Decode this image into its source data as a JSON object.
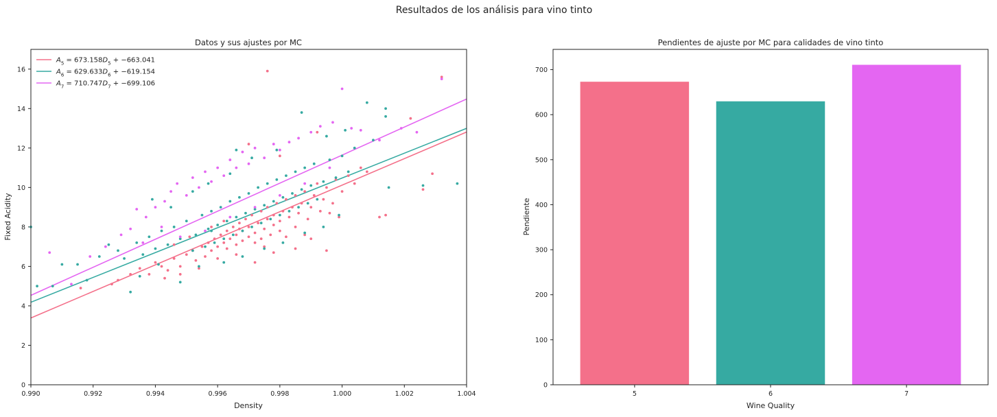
{
  "suptitle": "Resultados de los análisis para vino tinto",
  "chart_data": [
    {
      "type": "scatter",
      "title": "Datos y sus ajustes por MC",
      "xlabel": "Density",
      "ylabel": "Fixed Acidity",
      "xlim": [
        0.99,
        1.004
      ],
      "ylim": [
        0,
        17
      ],
      "xticks": [
        "0.990",
        "0.992",
        "0.994",
        "0.996",
        "0.998",
        "1.000",
        "1.002",
        "1.004"
      ],
      "yticks": [
        "0",
        "2",
        "4",
        "6",
        "8",
        "10",
        "12",
        "14",
        "16"
      ],
      "grid": false,
      "legend_position": "top-left",
      "series": [
        {
          "name": "A_5 = 673.158D_5 + -663.041",
          "legend_parts": {
            "sym": "A",
            "sub": "5",
            "eq": "673.158",
            "sym2": "D",
            "sub2": "5",
            "rest": "+ −663.041"
          },
          "color": "#f4708a",
          "slope": 673.158,
          "intercept": -663.041,
          "points": [
            [
              0.9916,
              4.9
            ],
            [
              0.9926,
              5.1
            ],
            [
              0.9928,
              5.3
            ],
            [
              0.9932,
              5.6
            ],
            [
              0.9935,
              5.9
            ],
            [
              0.9938,
              5.6
            ],
            [
              0.994,
              6.2
            ],
            [
              0.9942,
              6.0
            ],
            [
              0.9944,
              5.8
            ],
            [
              0.9946,
              6.4
            ],
            [
              0.9948,
              6.0
            ],
            [
              0.995,
              6.6
            ],
            [
              0.9952,
              6.8
            ],
            [
              0.9953,
              6.3
            ],
            [
              0.9955,
              7.0
            ],
            [
              0.9956,
              6.5
            ],
            [
              0.9957,
              7.2
            ],
            [
              0.9958,
              6.8
            ],
            [
              0.9959,
              7.4
            ],
            [
              0.996,
              7.0
            ],
            [
              0.9961,
              7.6
            ],
            [
              0.9962,
              7.2
            ],
            [
              0.9963,
              7.8
            ],
            [
              0.9963,
              6.9
            ],
            [
              0.9964,
              7.4
            ],
            [
              0.9965,
              8.0
            ],
            [
              0.9966,
              7.1
            ],
            [
              0.9966,
              7.6
            ],
            [
              0.9967,
              8.2
            ],
            [
              0.9968,
              7.3
            ],
            [
              0.9968,
              7.8
            ],
            [
              0.9969,
              8.4
            ],
            [
              0.997,
              7.5
            ],
            [
              0.997,
              8.0
            ],
            [
              0.9971,
              8.6
            ],
            [
              0.9972,
              7.2
            ],
            [
              0.9972,
              7.7
            ],
            [
              0.9973,
              8.2
            ],
            [
              0.9974,
              8.8
            ],
            [
              0.9974,
              7.4
            ],
            [
              0.9975,
              7.9
            ],
            [
              0.9976,
              8.4
            ],
            [
              0.9976,
              9.0
            ],
            [
              0.9977,
              7.6
            ],
            [
              0.9978,
              8.1
            ],
            [
              0.9978,
              8.6
            ],
            [
              0.9979,
              9.2
            ],
            [
              0.998,
              7.8
            ],
            [
              0.998,
              8.3
            ],
            [
              0.9981,
              8.8
            ],
            [
              0.9982,
              9.4
            ],
            [
              0.9982,
              7.5
            ],
            [
              0.9983,
              8.5
            ],
            [
              0.9984,
              9.0
            ],
            [
              0.9985,
              9.6
            ],
            [
              0.9985,
              8.0
            ],
            [
              0.9986,
              8.7
            ],
            [
              0.9987,
              9.2
            ],
            [
              0.9988,
              9.8
            ],
            [
              0.9989,
              8.4
            ],
            [
              0.999,
              9.0
            ],
            [
              0.9991,
              9.6
            ],
            [
              0.9992,
              10.2
            ],
            [
              0.9993,
              8.8
            ],
            [
              0.9994,
              9.4
            ],
            [
              0.9995,
              10.0
            ],
            [
              0.9997,
              9.2
            ],
            [
              0.9998,
              10.4
            ],
            [
              1.0,
              9.8
            ],
            [
              1.0002,
              10.6
            ],
            [
              1.0004,
              10.2
            ],
            [
              1.0006,
              11.0
            ],
            [
              1.0008,
              10.8
            ],
            [
              1.0012,
              8.5
            ],
            [
              1.0014,
              8.6
            ],
            [
              1.0022,
              13.5
            ],
            [
              1.0026,
              9.9
            ],
            [
              1.0029,
              10.7
            ],
            [
              1.0032,
              15.6
            ],
            [
              0.9976,
              15.9
            ],
            [
              0.9992,
              12.8
            ],
            [
              0.998,
              11.6
            ],
            [
              0.997,
              12.2
            ],
            [
              0.9966,
              6.6
            ],
            [
              0.9972,
              6.2
            ],
            [
              0.9978,
              6.7
            ],
            [
              0.9985,
              6.9
            ],
            [
              0.999,
              7.4
            ],
            [
              0.9995,
              6.8
            ],
            [
              0.996,
              6.4
            ],
            [
              0.9954,
              5.9
            ],
            [
              0.9948,
              5.6
            ],
            [
              0.9943,
              5.4
            ],
            [
              0.9999,
              8.5
            ],
            [
              0.9996,
              8.7
            ],
            [
              0.9988,
              7.6
            ],
            [
              0.9975,
              7.0
            ],
            [
              0.9967,
              7.9
            ],
            [
              0.9962,
              8.3
            ],
            [
              0.9958,
              8.0
            ],
            [
              0.9951,
              7.5
            ],
            [
              0.9946,
              7.1
            ]
          ]
        },
        {
          "name": "A_6 = 629.633D_6 + -619.154",
          "legend_parts": {
            "sym": "A",
            "sub": "6",
            "eq": "629.633",
            "sym2": "D",
            "sub2": "6",
            "rest": "+ −619.154"
          },
          "color": "#36aaa2",
          "slope": 629.633,
          "intercept": -619.154,
          "points": [
            [
              0.99,
              8.0
            ],
            [
              0.9902,
              5.0
            ],
            [
              0.9907,
              5.0
            ],
            [
              0.991,
              6.1
            ],
            [
              0.9915,
              6.1
            ],
            [
              0.9918,
              5.3
            ],
            [
              0.9922,
              6.5
            ],
            [
              0.9925,
              7.1
            ],
            [
              0.9928,
              6.8
            ],
            [
              0.993,
              6.4
            ],
            [
              0.9932,
              4.7
            ],
            [
              0.9934,
              7.2
            ],
            [
              0.9936,
              6.6
            ],
            [
              0.9938,
              7.5
            ],
            [
              0.994,
              6.9
            ],
            [
              0.9942,
              7.8
            ],
            [
              0.9944,
              7.1
            ],
            [
              0.9946,
              8.0
            ],
            [
              0.9948,
              7.4
            ],
            [
              0.995,
              8.3
            ],
            [
              0.9952,
              6.8
            ],
            [
              0.9953,
              7.6
            ],
            [
              0.9955,
              8.6
            ],
            [
              0.9956,
              7.0
            ],
            [
              0.9957,
              7.9
            ],
            [
              0.9958,
              8.8
            ],
            [
              0.9959,
              7.2
            ],
            [
              0.996,
              8.1
            ],
            [
              0.9961,
              9.0
            ],
            [
              0.9962,
              7.4
            ],
            [
              0.9963,
              8.3
            ],
            [
              0.9964,
              9.3
            ],
            [
              0.9965,
              7.6
            ],
            [
              0.9966,
              8.5
            ],
            [
              0.9967,
              9.5
            ],
            [
              0.9968,
              7.8
            ],
            [
              0.9969,
              8.7
            ],
            [
              0.997,
              9.7
            ],
            [
              0.9971,
              8.0
            ],
            [
              0.9972,
              8.9
            ],
            [
              0.9973,
              10.0
            ],
            [
              0.9974,
              8.2
            ],
            [
              0.9975,
              9.1
            ],
            [
              0.9976,
              10.2
            ],
            [
              0.9977,
              8.4
            ],
            [
              0.9978,
              9.3
            ],
            [
              0.9979,
              10.4
            ],
            [
              0.998,
              8.6
            ],
            [
              0.9981,
              9.5
            ],
            [
              0.9982,
              10.6
            ],
            [
              0.9983,
              8.8
            ],
            [
              0.9984,
              9.7
            ],
            [
              0.9985,
              10.8
            ],
            [
              0.9986,
              9.0
            ],
            [
              0.9987,
              9.9
            ],
            [
              0.9988,
              11.0
            ],
            [
              0.9989,
              9.2
            ],
            [
              0.999,
              10.1
            ],
            [
              0.9991,
              11.2
            ],
            [
              0.9992,
              9.4
            ],
            [
              0.9994,
              10.3
            ],
            [
              0.9996,
              11.4
            ],
            [
              0.9998,
              10.5
            ],
            [
              1.0,
              11.6
            ],
            [
              1.0002,
              10.8
            ],
            [
              1.0004,
              12.0
            ],
            [
              1.0008,
              14.3
            ],
            [
              1.001,
              12.4
            ],
            [
              1.0014,
              14.0
            ],
            [
              1.0014,
              13.6
            ],
            [
              1.0015,
              10.0
            ],
            [
              1.0026,
              10.1
            ],
            [
              1.0037,
              10.2
            ],
            [
              0.9987,
              13.8
            ],
            [
              0.9966,
              11.9
            ],
            [
              0.9958,
              7.8
            ],
            [
              0.9962,
              6.2
            ],
            [
              0.9968,
              6.5
            ],
            [
              0.9975,
              6.9
            ],
            [
              0.9981,
              7.2
            ],
            [
              0.9988,
              7.7
            ],
            [
              0.9994,
              8.0
            ],
            [
              0.9999,
              8.6
            ],
            [
              0.9954,
              6.0
            ],
            [
              0.9948,
              5.2
            ],
            [
              0.9941,
              6.1
            ],
            [
              0.9935,
              5.5
            ],
            [
              0.9971,
              11.5
            ],
            [
              0.9979,
              11.9
            ],
            [
              0.9995,
              12.6
            ],
            [
              1.0001,
              12.9
            ],
            [
              0.9964,
              10.7
            ],
            [
              0.9957,
              10.2
            ],
            [
              0.9952,
              9.8
            ],
            [
              0.9945,
              9.0
            ],
            [
              0.9939,
              9.4
            ]
          ]
        },
        {
          "name": "A_7 = 710.747D_7 + -699.106",
          "legend_parts": {
            "sym": "A",
            "sub": "7",
            "eq": "710.747",
            "sym2": "D",
            "sub2": "7",
            "rest": "+ −699.106"
          },
          "color": "#e466f2",
          "slope": 710.747,
          "intercept": -699.106,
          "points": [
            [
              0.9906,
              6.7
            ],
            [
              0.9913,
              5.1
            ],
            [
              0.9919,
              6.5
            ],
            [
              0.9924,
              7.0
            ],
            [
              0.9929,
              7.6
            ],
            [
              0.9932,
              7.9
            ],
            [
              0.9934,
              8.9
            ],
            [
              0.9937,
              8.5
            ],
            [
              0.994,
              9.0
            ],
            [
              0.9943,
              9.3
            ],
            [
              0.9945,
              9.8
            ],
            [
              0.9947,
              10.2
            ],
            [
              0.995,
              9.6
            ],
            [
              0.9952,
              10.5
            ],
            [
              0.9954,
              10.0
            ],
            [
              0.9956,
              10.8
            ],
            [
              0.9958,
              10.3
            ],
            [
              0.996,
              11.0
            ],
            [
              0.9962,
              10.6
            ],
            [
              0.9964,
              11.4
            ],
            [
              0.9966,
              11.0
            ],
            [
              0.9968,
              11.8
            ],
            [
              0.997,
              11.2
            ],
            [
              0.9972,
              12.0
            ],
            [
              0.9975,
              11.5
            ],
            [
              0.9978,
              12.2
            ],
            [
              0.998,
              11.9
            ],
            [
              0.9983,
              12.3
            ],
            [
              0.9986,
              12.5
            ],
            [
              0.999,
              12.8
            ],
            [
              0.9993,
              13.1
            ],
            [
              0.9997,
              13.3
            ],
            [
              1.0,
              15.0
            ],
            [
              1.0003,
              13.0
            ],
            [
              1.0006,
              12.9
            ],
            [
              1.0012,
              12.4
            ],
            [
              1.0019,
              13.0
            ],
            [
              1.0024,
              12.8
            ],
            [
              1.0032,
              15.5
            ],
            [
              0.9964,
              8.5
            ],
            [
              0.9972,
              9.0
            ],
            [
              0.998,
              9.6
            ],
            [
              0.9988,
              10.2
            ],
            [
              0.9996,
              11.0
            ],
            [
              0.9956,
              7.8
            ],
            [
              0.9948,
              7.5
            ],
            [
              0.9942,
              8.0
            ],
            [
              0.9936,
              7.2
            ]
          ]
        }
      ]
    },
    {
      "type": "bar",
      "title": "Pendientes de ajuste por MC para calidades de vino tinto",
      "xlabel": "Wine Quality",
      "ylabel": "Pendiente",
      "categories": [
        "5",
        "6",
        "7"
      ],
      "values": [
        673.158,
        629.633,
        710.747
      ],
      "colors": [
        "#f4708a",
        "#36aaa2",
        "#e466f2"
      ],
      "ylim": [
        0,
        745
      ],
      "yticks": [
        "0",
        "100",
        "200",
        "300",
        "400",
        "500",
        "600",
        "700"
      ],
      "grid": false
    }
  ]
}
